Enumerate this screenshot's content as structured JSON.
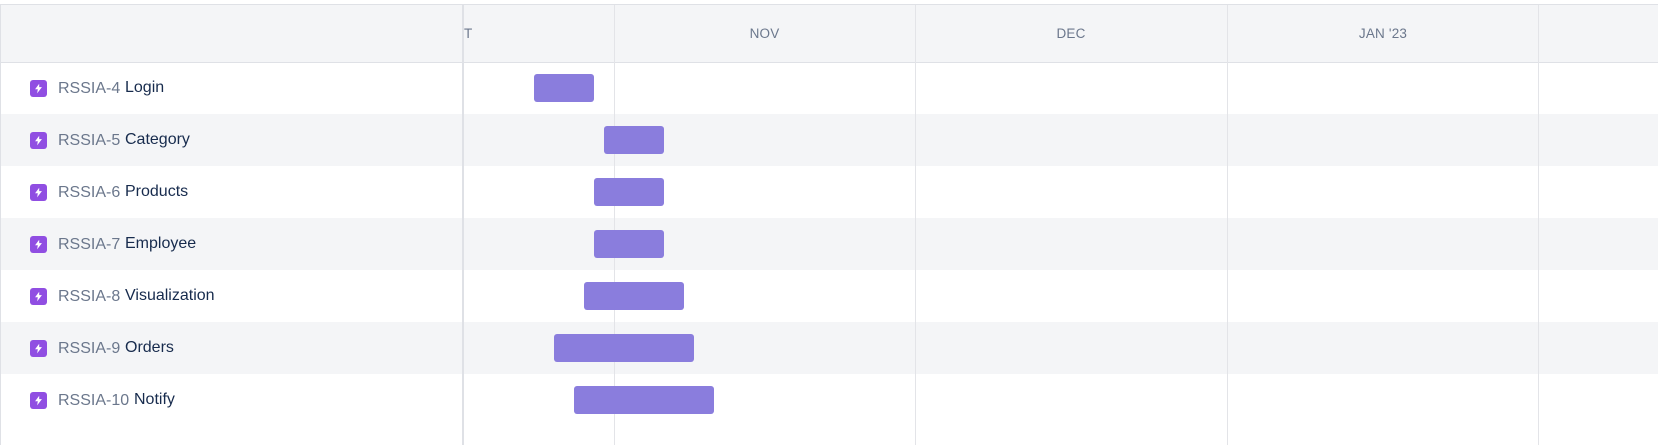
{
  "timeline": {
    "months": [
      {
        "label": "T"
      },
      {
        "label": "NOV"
      },
      {
        "label": "DEC"
      },
      {
        "label": "JAN '23"
      }
    ]
  },
  "issues": [
    {
      "key": "RSSIA-4",
      "summary": "Login",
      "start": "2022-10-24",
      "end": "2022-10-30"
    },
    {
      "key": "RSSIA-5",
      "summary": "Category",
      "start": "2022-10-31",
      "end": "2022-11-06"
    },
    {
      "key": "RSSIA-6",
      "summary": "Products",
      "start": "2022-10-30",
      "end": "2022-11-06"
    },
    {
      "key": "RSSIA-7",
      "summary": "Employee",
      "start": "2022-10-30",
      "end": "2022-11-06"
    },
    {
      "key": "RSSIA-8",
      "summary": "Visualization",
      "start": "2022-10-29",
      "end": "2022-11-08"
    },
    {
      "key": "RSSIA-9",
      "summary": "Orders",
      "start": "2022-10-26",
      "end": "2022-11-09"
    },
    {
      "key": "RSSIA-10",
      "summary": "Notify",
      "start": "2022-10-28",
      "end": "2022-11-11"
    }
  ],
  "colors": {
    "epic_icon": "#904ee2",
    "bar": "#8a7ddd",
    "stripe": "#f4f5f7"
  },
  "icons": {
    "issue_type": "lightning-bolt-icon"
  }
}
